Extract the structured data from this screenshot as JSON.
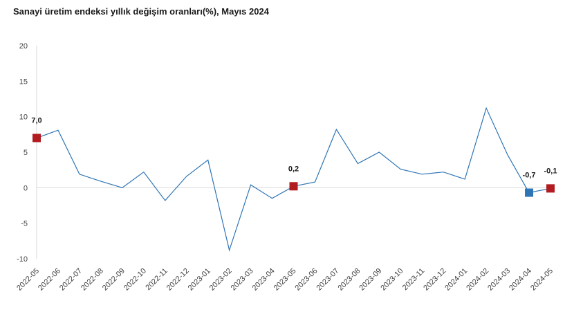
{
  "chart_data": {
    "type": "line",
    "title": "Sanayi üretim endeksi yıllık değişim oranları(%), Mayıs 2024",
    "xlabel": "",
    "ylabel": "",
    "ylim": [
      -10,
      20
    ],
    "yticks": [
      20,
      15,
      10,
      5,
      0,
      -5,
      -10
    ],
    "grid": "zero-line only",
    "legend": "none",
    "categories": [
      "2022-05",
      "2022-06",
      "2022-07",
      "2022-08",
      "2022-09",
      "2022-10",
      "2022-11",
      "2022-12",
      "2023-01",
      "2023-02",
      "2023-03",
      "2023-04",
      "2023-05",
      "2023-06",
      "2023-07",
      "2023-08",
      "2023-09",
      "2023-10",
      "2023-11",
      "2023-12",
      "2024-01",
      "2024-02",
      "2024-03",
      "2024-04",
      "2024-05"
    ],
    "series": [
      {
        "color": "#2e75b6",
        "values": [
          7.0,
          8.1,
          1.9,
          0.9,
          0.0,
          2.2,
          -1.8,
          1.6,
          3.9,
          -8.8,
          0.4,
          -1.5,
          0.2,
          0.8,
          8.2,
          3.4,
          5.0,
          2.6,
          1.9,
          2.2,
          1.2,
          11.2,
          4.6,
          -0.7,
          -0.1
        ]
      }
    ],
    "highlights": [
      {
        "index": 0,
        "label": "7,0",
        "color": "#b01c20"
      },
      {
        "index": 12,
        "label": "0,2",
        "color": "#b01c20"
      },
      {
        "index": 23,
        "label": "-0,7",
        "color": "#2e75b6"
      },
      {
        "index": 24,
        "label": "-0,1",
        "color": "#b01c20"
      }
    ]
  }
}
